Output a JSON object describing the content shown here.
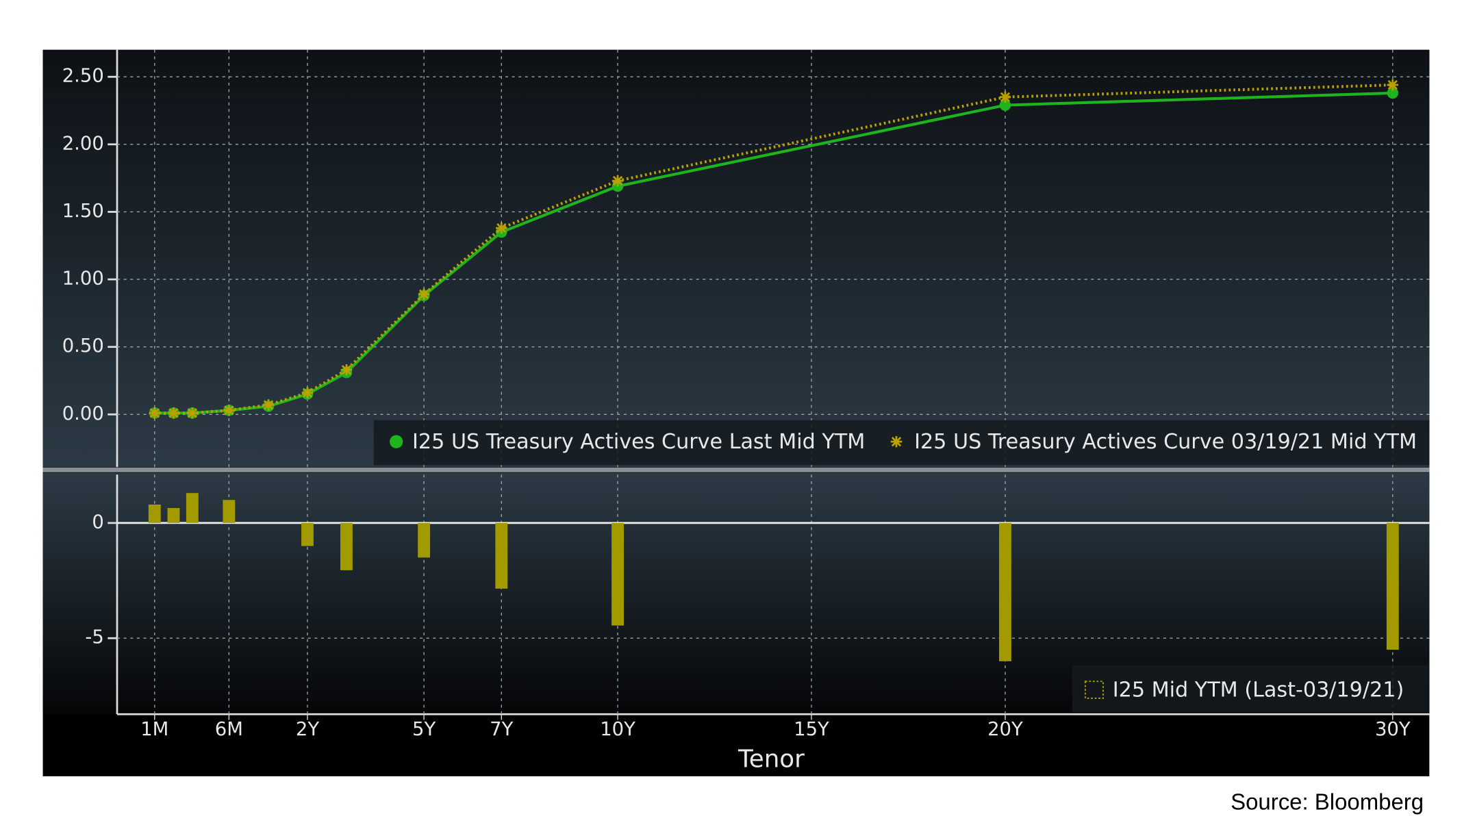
{
  "chart_data": [
    {
      "type": "line",
      "x": [
        0.083,
        0.167,
        0.25,
        0.5,
        1,
        2,
        3,
        5,
        7,
        10,
        20,
        30
      ],
      "series": [
        {
          "name": "I25 US Treasury Actives Curve Last Mid YTM",
          "color": "#1eb41e",
          "marker": "circle",
          "line": "solid",
          "values": [
            0.01,
            0.01,
            0.01,
            0.03,
            0.06,
            0.15,
            0.31,
            0.88,
            1.35,
            1.69,
            2.29,
            2.38
          ]
        },
        {
          "name": "I25 US Treasury Actives Curve 03/19/21 Mid YTM",
          "color": "#b9a200",
          "marker": "asterisk",
          "line": "dotted",
          "values": [
            0.01,
            0.01,
            0.01,
            0.03,
            0.07,
            0.16,
            0.33,
            0.89,
            1.38,
            1.73,
            2.35,
            2.44
          ]
        }
      ],
      "ylim": [
        -0.39,
        2.7
      ],
      "yticks": [
        {
          "value": 0,
          "label": "0.00"
        },
        {
          "value": 0.5,
          "label": "0.50"
        },
        {
          "value": 1,
          "label": "1.00"
        },
        {
          "value": 1.5,
          "label": "1.50"
        },
        {
          "value": 2,
          "label": "2.00"
        },
        {
          "value": 2.5,
          "label": "2.50"
        }
      ],
      "grid": true,
      "legend": "lower right"
    },
    {
      "type": "bar",
      "x": [
        0.083,
        0.167,
        0.25,
        0.5,
        1,
        2,
        3,
        5,
        7,
        10,
        20,
        30
      ],
      "series": [
        {
          "name": "I25 Mid YTM (Last-03/19/21)",
          "color": "#a39a00",
          "values": [
            0.8,
            0.65,
            1.3,
            1.0,
            0,
            -1.0,
            -2.05,
            -1.5,
            -2.85,
            -4.45,
            -6.0,
            -5.5
          ]
        }
      ],
      "ylim": [
        -8.3,
        2.1
      ],
      "yticks": [
        -5,
        0
      ],
      "xticks": [
        {
          "value": 0.083,
          "label": "1M"
        },
        {
          "value": 0.5,
          "label": "6M"
        },
        {
          "value": 2,
          "label": "2Y"
        },
        {
          "value": 5,
          "label": "5Y"
        },
        {
          "value": 7,
          "label": "7Y"
        },
        {
          "value": 10,
          "label": "10Y"
        },
        {
          "value": 15,
          "label": "15Y"
        },
        {
          "value": 20,
          "label": "20Y"
        },
        {
          "value": 30,
          "label": "30Y"
        }
      ],
      "xlabel": "Tenor",
      "grid": true,
      "legend": "lower right"
    }
  ],
  "source": "Source: Bloomberg"
}
